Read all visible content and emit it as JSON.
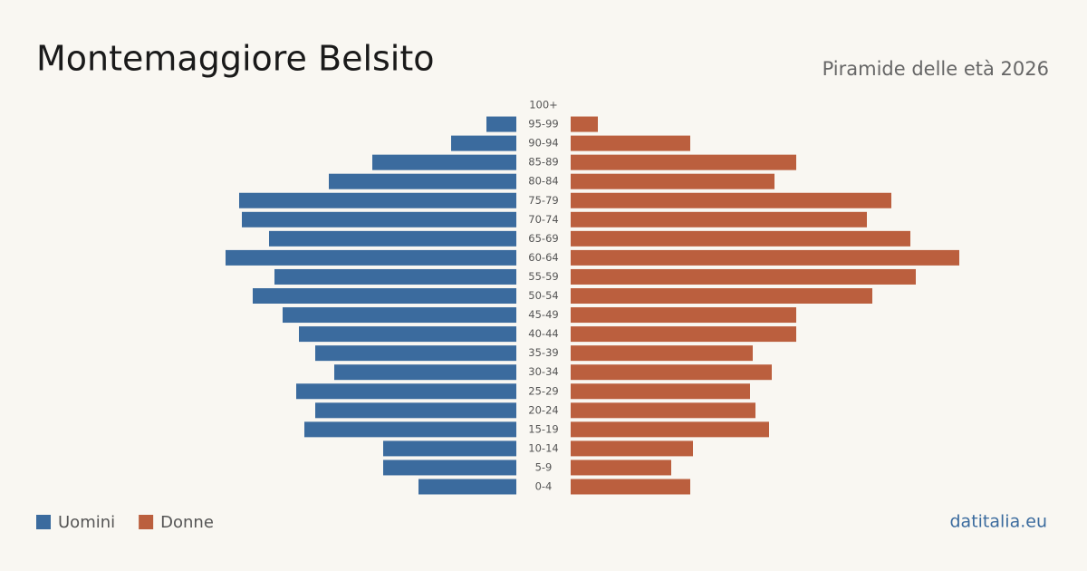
{
  "chart_data": {
    "type": "pyramid",
    "title": "Montemaggiore  Belsito",
    "subtitle": "Piramide delle età 2026",
    "source": "datitalia.eu",
    "categories": [
      "0-4",
      "5-9",
      "10-14",
      "15-19",
      "20-24",
      "25-29",
      "30-34",
      "35-39",
      "40-44",
      "45-49",
      "50-54",
      "55-59",
      "60-64",
      "65-69",
      "70-74",
      "75-79",
      "80-84",
      "85-89",
      "90-94",
      "95-99",
      "100+"
    ],
    "series": [
      {
        "name": "Uomini",
        "color": "#3b6b9e",
        "values": [
          36,
          49,
          49,
          78,
          74,
          81,
          67,
          74,
          80,
          86,
          97,
          89,
          107,
          91,
          101,
          102,
          69,
          53,
          24,
          11,
          0
        ]
      },
      {
        "name": "Donne",
        "color": "#bb5f3e",
        "values": [
          44,
          37,
          45,
          73,
          68,
          66,
          74,
          67,
          83,
          83,
          111,
          127,
          143,
          125,
          109,
          118,
          75,
          83,
          44,
          10,
          0
        ]
      }
    ],
    "xlim": [
      0,
      145
    ],
    "legend": "bottom-left"
  }
}
